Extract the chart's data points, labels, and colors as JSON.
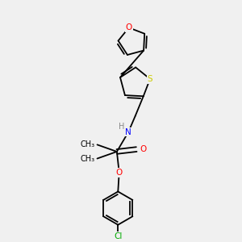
{
  "background_color": "#f0f0f0",
  "atom_colors": {
    "O": "#ff0000",
    "S": "#cccc00",
    "N": "#0000ff",
    "Cl": "#00aa00",
    "C": "#000000",
    "H": "#888888"
  },
  "font_size": 7.5,
  "fig_size": [
    3.0,
    3.0
  ],
  "dpi": 100
}
